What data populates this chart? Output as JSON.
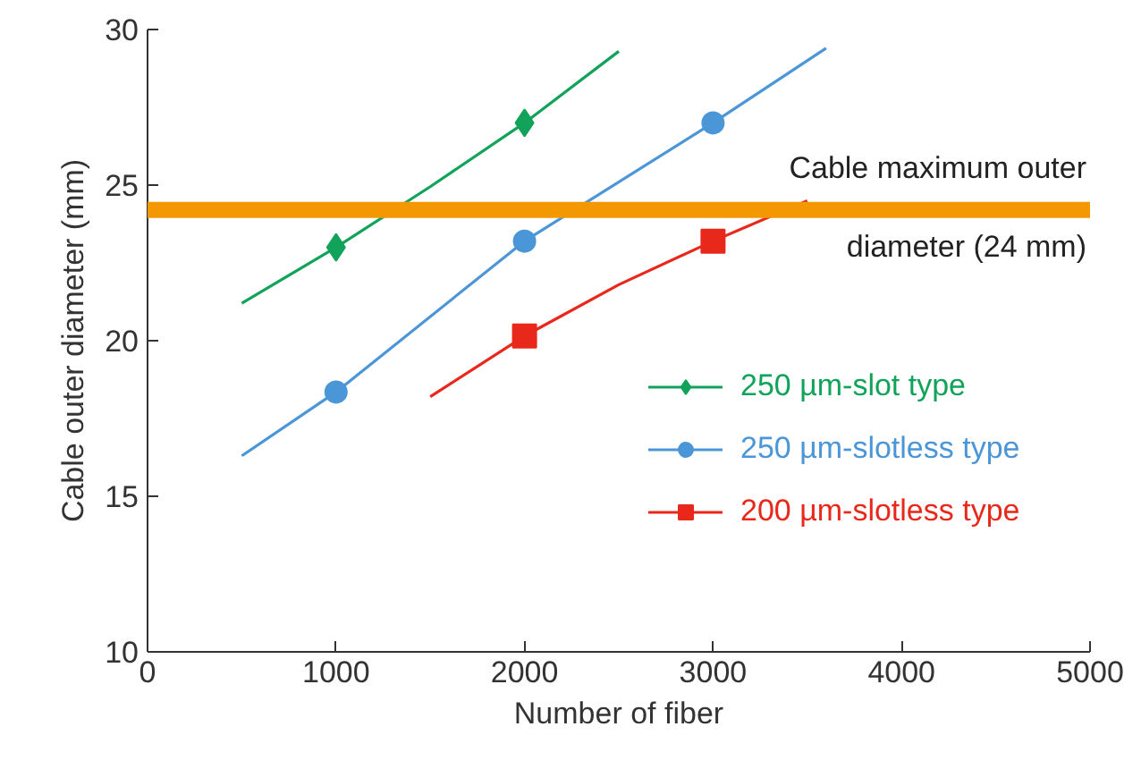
{
  "chart_data": {
    "type": "line",
    "xlabel": "Number of fiber",
    "ylabel": "Cable outer diameter (mm)",
    "xlim": [
      0,
      5000
    ],
    "xticks": [
      0,
      1000,
      2000,
      3000,
      4000,
      5000
    ],
    "ylim": [
      10,
      30
    ],
    "yticks": [
      10,
      15,
      20,
      25,
      30
    ],
    "grid": false,
    "legend": "right",
    "series": [
      {
        "color": "#12a35a",
        "x": [
          500,
          1000,
          1500,
          2000,
          2500
        ],
        "values": [
          21.2,
          23,
          24.95,
          27,
          29.3
        ]
      },
      {
        "color": "#4a96d6",
        "x": [
          500,
          1000,
          2000,
          3000,
          3600
        ],
        "values": [
          16.3,
          18.35,
          23.2,
          27,
          29.4
        ]
      },
      {
        "color": "#e8281a",
        "x": [
          1500,
          2000,
          2500,
          3000,
          3500
        ],
        "values": [
          18.2,
          20.15,
          21.8,
          23.2,
          24.5
        ]
      },
      {
        "type": "scatter",
        "name": "250 µm-slot type",
        "color": "#12a35a",
        "marker": "diamond",
        "x": [
          1000,
          2000
        ],
        "values": [
          23,
          27
        ]
      },
      {
        "type": "scatter",
        "name": "250 µm-slotless type",
        "color": "#4a96d6",
        "marker": "circle",
        "x": [
          1000,
          2000,
          3000
        ],
        "values": [
          18.35,
          23.2,
          27
        ]
      },
      {
        "type": "scatter",
        "name": "200 µm-slotless type",
        "color": "#e8281a",
        "marker": "square",
        "x": [
          2000,
          3000
        ],
        "values": [
          20.15,
          23.2
        ]
      }
    ],
    "ref_lines": [
      {
        "axis": "y",
        "value": 24.2,
        "label": "Cable maximum outer\ndiameter (24 mm)",
        "color": "#f39800"
      }
    ]
  }
}
